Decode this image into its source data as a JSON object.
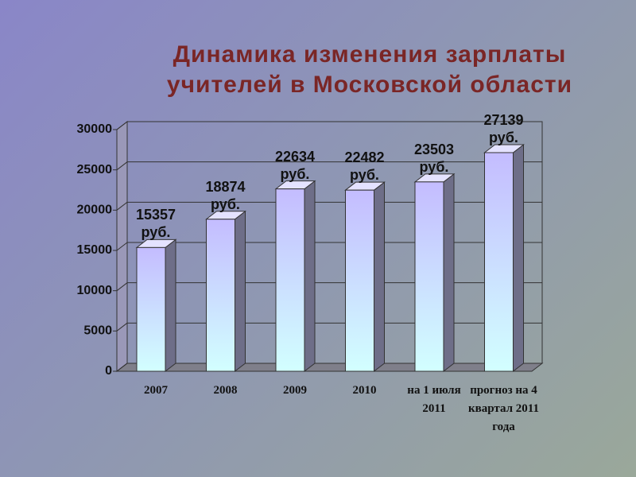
{
  "chart_data": {
    "type": "bar",
    "title": "Динамика изменения зарплаты учителей в Московской области",
    "categories": [
      "2007",
      "2008",
      "2009",
      "2010",
      "на 1 июля 2011",
      "прогноз на 4 квартал 2011 года"
    ],
    "values": [
      15357,
      18874,
      22634,
      22482,
      23503,
      27139
    ],
    "value_labels": [
      "15357 руб.",
      "18874 руб.",
      "22634 руб.",
      "22482 руб.",
      "23503 руб.",
      "27139 руб."
    ],
    "ylim": [
      0,
      30000
    ],
    "yticks": [
      0,
      5000,
      10000,
      15000,
      20000,
      25000,
      30000
    ],
    "grid": true
  }
}
